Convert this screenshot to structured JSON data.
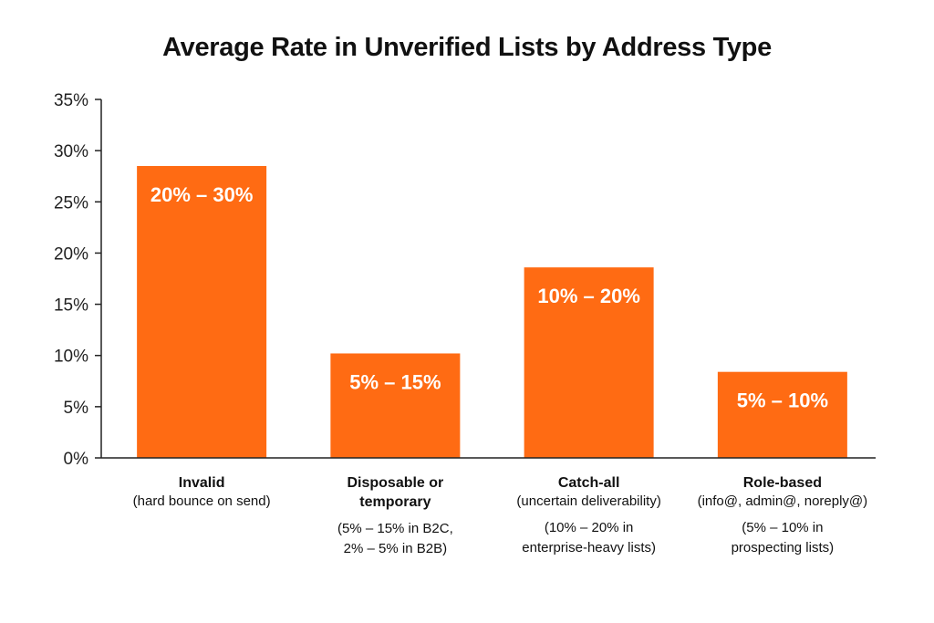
{
  "chart_data": {
    "type": "bar",
    "title": "Average Rate in Unverified Lists by Address Type",
    "xlabel": "",
    "ylabel": "",
    "ylim": [
      0,
      35
    ],
    "yticks": [
      "0%",
      "5%",
      "10%",
      "15%",
      "20%",
      "25%",
      "30%",
      "35%"
    ],
    "ytick_values": [
      0,
      5,
      10,
      15,
      20,
      25,
      30,
      35
    ],
    "grid": false,
    "legend": "none",
    "bar_color": "#FF6B13",
    "categories": [
      {
        "name": "Invalid",
        "subtitle": "(hard bounce on send)",
        "note": "",
        "value": 28.5,
        "label": "20% – 30%"
      },
      {
        "name": "Disposable or\ntemporary",
        "subtitle": "",
        "note": "(5% – 15% in B2C,\n2% – 5% in B2B)",
        "value": 10.2,
        "label": "5% – 15%"
      },
      {
        "name": "Catch-all",
        "subtitle": "(uncertain deliverability)",
        "note": "(10% – 20% in\nenterprise-heavy lists)",
        "value": 18.6,
        "label": "10% – 20%"
      },
      {
        "name": "Role-based",
        "subtitle": "(info@, admin@, noreply@)",
        "note": "(5% – 10% in\nprospecting lists)",
        "value": 8.4,
        "label": "5% – 10%"
      }
    ]
  }
}
